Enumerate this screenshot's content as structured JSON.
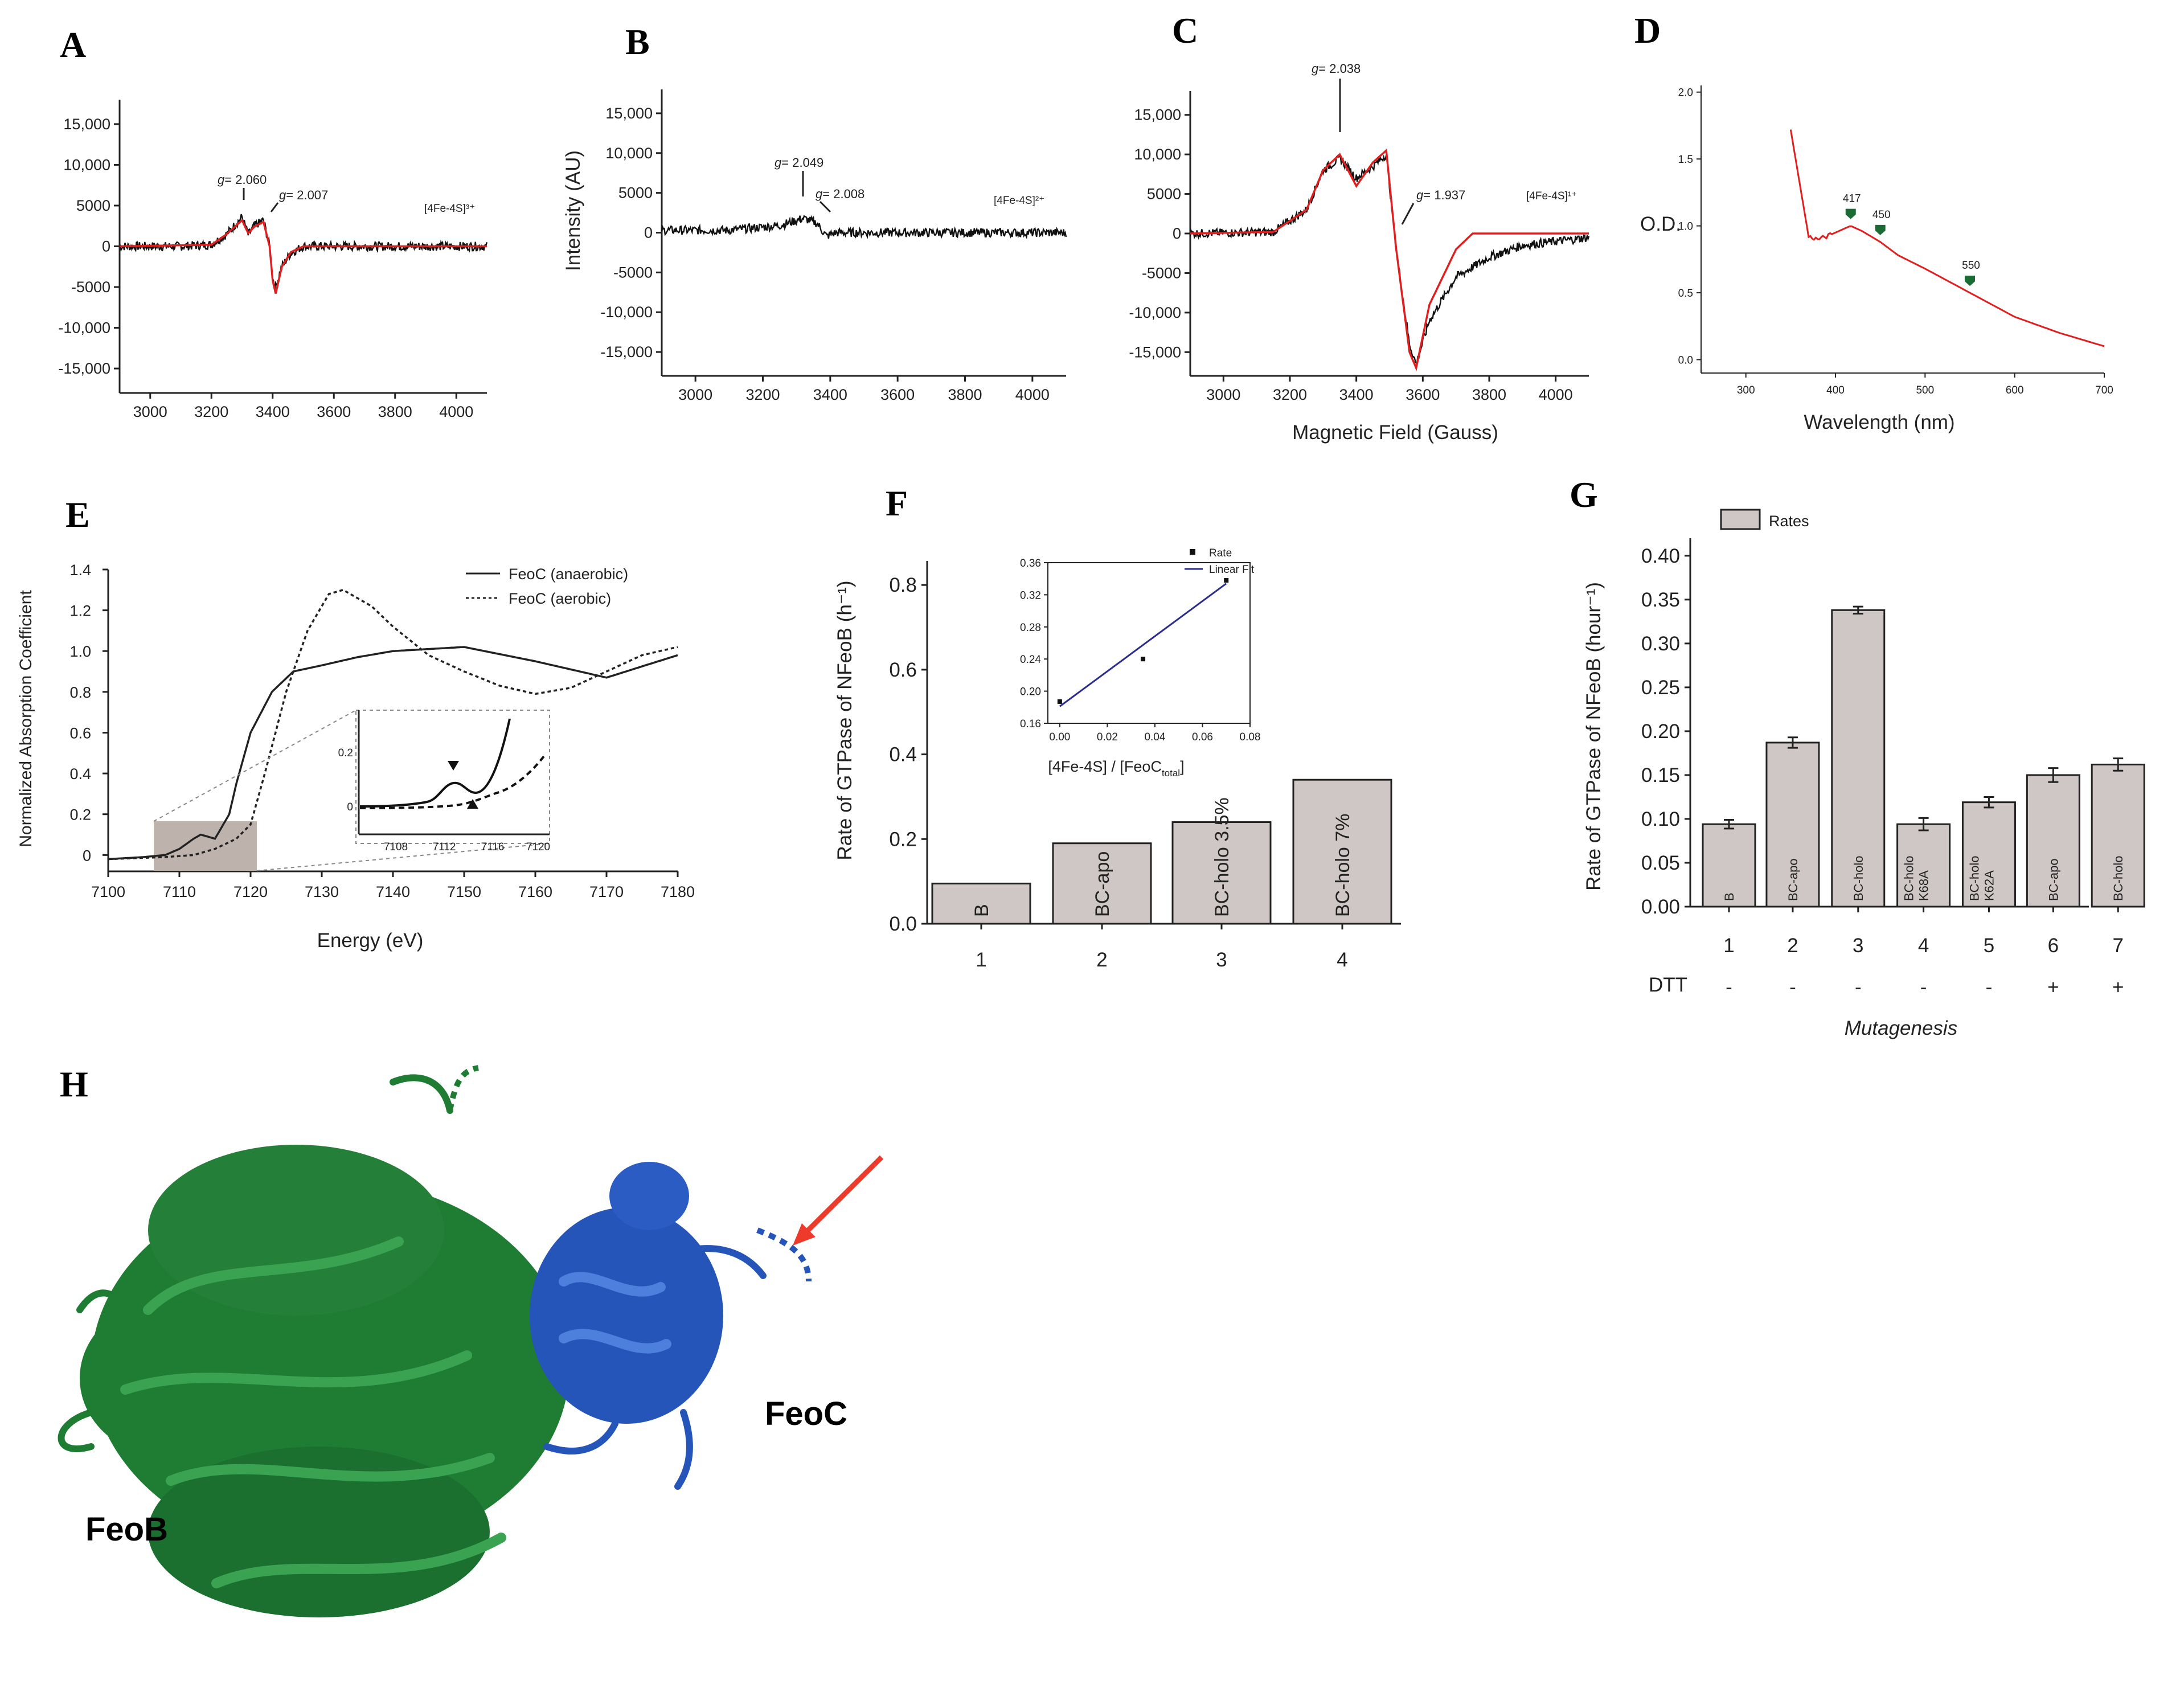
{
  "panels": {
    "A": {
      "label": "A",
      "y_ticks": [
        "15,000",
        "10,000",
        "5000",
        "0",
        "-5000",
        "-10,000",
        "-15,000"
      ],
      "x_ticks": [
        "3000",
        "3200",
        "3400",
        "3600",
        "3800",
        "4000"
      ],
      "annotations": {
        "g1": "2.060",
        "g2": "2.007",
        "g_prefix": "g",
        "g_eq": "= ",
        "cluster": "[4Fe-4S]³⁺"
      }
    },
    "B": {
      "label": "B",
      "ylabel": "Intensity (AU)",
      "y_ticks": [
        "15,000",
        "10,000",
        "5000",
        "0",
        "-5000",
        "-10,000",
        "-15,000"
      ],
      "x_ticks": [
        "3000",
        "3200",
        "3400",
        "3600",
        "3800",
        "4000"
      ],
      "annotations": {
        "g1": "2.049",
        "g2": "2.008",
        "g_prefix": "g",
        "g_eq": "= ",
        "cluster": "[4Fe-4S]²⁺"
      }
    },
    "C": {
      "label": "C",
      "xlabel": "Magnetic Field (Gauss)",
      "y_ticks": [
        "15,000",
        "10,000",
        "5000",
        "0",
        "-5000",
        "-10,000",
        "-15,000"
      ],
      "x_ticks": [
        "3000",
        "3200",
        "3400",
        "3600",
        "3800",
        "4000"
      ],
      "annotations": {
        "g1": "2.038",
        "g2": "1.937",
        "g_prefix": "g",
        "g_eq": "= ",
        "cluster": "[4Fe-4S]¹⁺"
      }
    },
    "D": {
      "label": "D",
      "ylabel": "O.D.",
      "xlabel": "Wavelength (nm)",
      "y_ticks": [
        "2.0",
        "1.5",
        "1.0",
        "0.5",
        "0.0"
      ],
      "x_ticks": [
        "300",
        "400",
        "500",
        "600",
        "700"
      ],
      "peaks": [
        "417",
        "450",
        "550"
      ]
    },
    "E": {
      "label": "E",
      "ylabel": "Normalized Absorption Coefficient",
      "xlabel": "Energy (eV)",
      "y_ticks": [
        "1.4",
        "1.2",
        "1.0",
        "0.8",
        "0.6",
        "0.4",
        "0.2",
        "0"
      ],
      "x_ticks": [
        "7100",
        "7110",
        "7120",
        "7130",
        "7140",
        "7150",
        "7160",
        "7170",
        "7180"
      ],
      "legend": [
        "FeoC (anaerobic)",
        "FeoC (aerobic)"
      ],
      "inset_y_ticks": [
        "0.2",
        "0"
      ],
      "inset_x_ticks": [
        "7108",
        "7112",
        "7116",
        "7120"
      ]
    },
    "F": {
      "label": "F",
      "ylabel": "Rate of GTPase of NFeoB (h⁻¹)",
      "y_ticks": [
        "0.8",
        "0.6",
        "0.4",
        "0.2",
        "0.0"
      ],
      "x_ticks": [
        "1",
        "2",
        "3",
        "4"
      ],
      "bar_texts": [
        "B",
        "BC-apo",
        "BC-holo 3.5%",
        "BC-holo 7%"
      ],
      "inset": {
        "legend": [
          "Rate",
          "Linear Fit"
        ],
        "y_ticks": [
          "0.36",
          "0.32",
          "0.28",
          "0.24",
          "0.20",
          "0.16"
        ],
        "x_ticks": [
          "0.00",
          "0.02",
          "0.04",
          "0.06",
          "0.08"
        ],
        "xlabel_main": "[4Fe-4S] / [FeoC",
        "xlabel_sub": "total",
        "xlabel_end": "]"
      }
    },
    "G": {
      "label": "G",
      "ylabel": "Rate of GTPase of NFeoB  (hour⁻¹)",
      "legend": "Rates",
      "y_ticks": [
        "0.40",
        "0.35",
        "0.30",
        "0.25",
        "0.20",
        "0.15",
        "0.10",
        "0.05",
        "0.00"
      ],
      "x_ticks": [
        "1",
        "2",
        "3",
        "4",
        "5",
        "6",
        "7"
      ],
      "dtt_label": "DTT",
      "dtt_values": [
        "-",
        "-",
        "-",
        "-",
        "-",
        "+",
        "+"
      ],
      "xlabel": "Mutagenesis",
      "bar_texts": [
        "B",
        "BC-apo",
        "BC-holo",
        "BC-holo K68A",
        "BC-holo K62A",
        "BC-apo",
        "BC-holo"
      ]
    },
    "H": {
      "label": "H",
      "feob": "FeoB",
      "feoc": "FeoC"
    }
  },
  "chart_data": [
    {
      "panel": "A",
      "type": "line",
      "xlabel": "",
      "ylabel": "",
      "xlim": [
        2900,
        4100
      ],
      "ylim": [
        -18000,
        18000
      ],
      "series": [
        {
          "color": "#111111",
          "x": [
            2900,
            3000,
            3100,
            3200,
            3250,
            3300,
            3320,
            3340,
            3370,
            3390,
            3400,
            3410,
            3430,
            3460,
            3500,
            3600,
            3800,
            4100
          ],
          "y": [
            0,
            0,
            0,
            200,
            1500,
            3600,
            1400,
            2500,
            3200,
            0,
            -4000,
            -5000,
            -2500,
            -800,
            0,
            0,
            0,
            0
          ]
        },
        {
          "color": "#e02020",
          "x": [
            2900,
            3200,
            3250,
            3300,
            3320,
            3340,
            3370,
            3390,
            3400,
            3410,
            3430,
            3460,
            3500,
            3600,
            4100
          ],
          "y": [
            0,
            200,
            1500,
            3200,
            1600,
            2400,
            3000,
            0,
            -4200,
            -5800,
            -2500,
            -700,
            0,
            0,
            0
          ]
        }
      ]
    },
    {
      "panel": "B",
      "type": "line",
      "xlabel": "",
      "ylabel": "Intensity (AU)",
      "xlim": [
        2900,
        4100
      ],
      "ylim": [
        -18000,
        18000
      ],
      "series": [
        {
          "color": "#111111",
          "x": [
            2900,
            3100,
            3250,
            3320,
            3360,
            3390,
            3400,
            3420,
            3600,
            3800,
            4100
          ],
          "y": [
            300,
            300,
            900,
            1800,
            1200,
            -500,
            -200,
            0,
            0,
            0,
            0
          ]
        }
      ]
    },
    {
      "panel": "C",
      "type": "line",
      "xlabel": "Magnetic Field (Gauss)",
      "ylabel": "",
      "xlim": [
        2900,
        4100
      ],
      "ylim": [
        -18000,
        18000
      ],
      "series": [
        {
          "color": "#111111",
          "x": [
            2900,
            3150,
            3250,
            3300,
            3350,
            3400,
            3450,
            3490,
            3520,
            3560,
            3580,
            3620,
            3700,
            3800,
            3900,
            4100
          ],
          "y": [
            0,
            200,
            3000,
            8000,
            9500,
            7000,
            8500,
            10000,
            -2000,
            -14000,
            -16500,
            -11000,
            -5500,
            -3000,
            -1500,
            -500
          ]
        },
        {
          "color": "#e02020",
          "x": [
            2900,
            3150,
            3250,
            3300,
            3350,
            3400,
            3450,
            3490,
            3520,
            3560,
            3580,
            3620,
            3700,
            3750,
            4100
          ],
          "y": [
            0,
            200,
            3000,
            8000,
            10000,
            6000,
            9000,
            10500,
            -2000,
            -15000,
            -17000,
            -9000,
            -2000,
            0,
            0
          ]
        }
      ]
    },
    {
      "panel": "D",
      "type": "line",
      "xlabel": "Wavelength (nm)",
      "ylabel": "O.D.",
      "xlim": [
        250,
        700
      ],
      "ylim": [
        -0.1,
        2.05
      ],
      "series": [
        {
          "color": "#e02020",
          "x": [
            350,
            360,
            370,
            380,
            390,
            400,
            410,
            417,
            430,
            450,
            470,
            500,
            550,
            600,
            650,
            700
          ],
          "y": [
            1.72,
            1.32,
            0.92,
            0.9,
            0.92,
            0.95,
            0.98,
            1.0,
            0.96,
            0.88,
            0.78,
            0.68,
            0.5,
            0.32,
            0.2,
            0.1
          ]
        }
      ]
    },
    {
      "panel": "E",
      "type": "line",
      "xlabel": "Energy (eV)",
      "ylabel": "Normalized Absorption Coefficient",
      "xlim": [
        7100,
        7180
      ],
      "ylim": [
        -0.08,
        1.4
      ],
      "series": [
        {
          "name": "FeoC (anaerobic)",
          "color": "#222222",
          "x": [
            7100,
            7105,
            7108,
            7110,
            7112,
            7113,
            7114,
            7115,
            7117,
            7118,
            7120,
            7123,
            7126,
            7130,
            7135,
            7140,
            7150,
            7160,
            7170,
            7180
          ],
          "y": [
            -0.02,
            -0.01,
            0.0,
            0.03,
            0.08,
            0.1,
            0.09,
            0.08,
            0.2,
            0.35,
            0.6,
            0.8,
            0.9,
            0.93,
            0.97,
            1.0,
            1.02,
            0.95,
            0.87,
            0.98
          ]
        },
        {
          "name": "FeoC (aerobic)",
          "color": "#222222",
          "x": [
            7100,
            7108,
            7112,
            7115,
            7118,
            7120,
            7122,
            7125,
            7128,
            7131,
            7133,
            7137,
            7140,
            7145,
            7150,
            7155,
            7160,
            7165,
            7170,
            7175,
            7180
          ],
          "y": [
            -0.02,
            -0.01,
            0.0,
            0.03,
            0.08,
            0.15,
            0.4,
            0.8,
            1.1,
            1.28,
            1.3,
            1.22,
            1.12,
            0.98,
            0.9,
            0.83,
            0.79,
            0.82,
            0.9,
            0.98,
            1.02
          ]
        }
      ]
    },
    {
      "panel": "F",
      "type": "bar",
      "xlabel": "",
      "ylabel": "Rate of GTPase of NFeoB (h⁻¹)",
      "categories": [
        "1",
        "2",
        "3",
        "4"
      ],
      "values": [
        0.095,
        0.19,
        0.24,
        0.34
      ],
      "ylim": [
        0,
        0.85
      ]
    },
    {
      "panel": "F-inset",
      "type": "scatter",
      "xlabel": "[4Fe-4S] / [FeoC total]",
      "ylabel": "",
      "xlim": [
        -0.005,
        0.08
      ],
      "ylim": [
        0.16,
        0.36
      ],
      "series": [
        {
          "name": "Rate",
          "x": [
            0.0,
            0.035,
            0.07
          ],
          "y": [
            0.187,
            0.24,
            0.338
          ]
        },
        {
          "name": "Linear Fit",
          "x": [
            0.0,
            0.07
          ],
          "y": [
            0.181,
            0.334
          ]
        }
      ]
    },
    {
      "panel": "G",
      "type": "bar",
      "xlabel": "Mutagenesis",
      "ylabel": "Rate of GTPase of NFeoB  (hour⁻¹)",
      "categories": [
        "1",
        "2",
        "3",
        "4",
        "5",
        "6",
        "7"
      ],
      "values": [
        0.094,
        0.187,
        0.338,
        0.094,
        0.119,
        0.15,
        0.162
      ],
      "errors": [
        0.005,
        0.006,
        0.004,
        0.007,
        0.006,
        0.008,
        0.007
      ],
      "ylim": [
        0,
        0.42
      ]
    }
  ],
  "colors": {
    "ink": "#222222",
    "fit_red": "#e02020",
    "marker_green": "#1a6b34",
    "bar_fill": "#cfc6c6",
    "feob_green": "#1f7d33",
    "feoc_blue": "#2555b8",
    "arrow_red": "#ee3a2a"
  }
}
